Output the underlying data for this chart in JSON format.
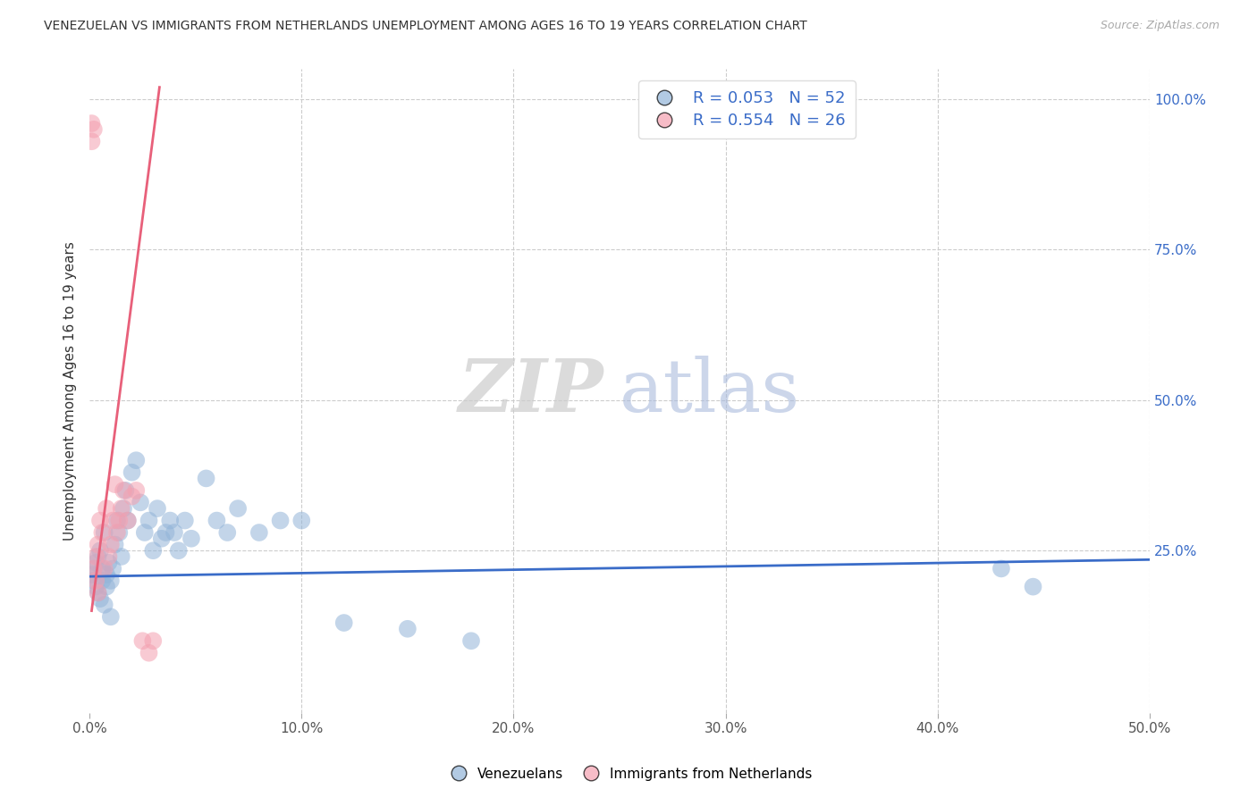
{
  "title": "VENEZUELAN VS IMMIGRANTS FROM NETHERLANDS UNEMPLOYMENT AMONG AGES 16 TO 19 YEARS CORRELATION CHART",
  "source": "Source: ZipAtlas.com",
  "ylabel": "Unemployment Among Ages 16 to 19 years",
  "xlim": [
    0.0,
    0.5
  ],
  "ylim": [
    -0.02,
    1.05
  ],
  "xtick_labels": [
    "0.0%",
    "10.0%",
    "20.0%",
    "30.0%",
    "40.0%",
    "50.0%"
  ],
  "xtick_vals": [
    0.0,
    0.1,
    0.2,
    0.3,
    0.4,
    0.5
  ],
  "ytick_labels": [
    "100.0%",
    "75.0%",
    "50.0%",
    "25.0%"
  ],
  "ytick_vals": [
    1.0,
    0.75,
    0.5,
    0.25
  ],
  "watermark_zip": "ZIP",
  "watermark_atlas": "atlas",
  "legend_blue_r": "0.053",
  "legend_blue_n": "52",
  "legend_pink_r": "0.554",
  "legend_pink_n": "26",
  "legend_blue_label": "Venezuelans",
  "legend_pink_label": "Immigrants from Netherlands",
  "blue_color": "#92B4D8",
  "pink_color": "#F4A0B0",
  "blue_line_color": "#3A6CC8",
  "pink_line_color": "#E8607A",
  "venezuelan_x": [
    0.001,
    0.002,
    0.002,
    0.003,
    0.003,
    0.004,
    0.004,
    0.005,
    0.005,
    0.006,
    0.006,
    0.007,
    0.007,
    0.008,
    0.008,
    0.009,
    0.01,
    0.01,
    0.011,
    0.012,
    0.013,
    0.014,
    0.015,
    0.016,
    0.017,
    0.018,
    0.02,
    0.022,
    0.024,
    0.026,
    0.028,
    0.03,
    0.032,
    0.034,
    0.036,
    0.038,
    0.04,
    0.042,
    0.045,
    0.048,
    0.055,
    0.06,
    0.065,
    0.07,
    0.08,
    0.09,
    0.1,
    0.12,
    0.15,
    0.18,
    0.43,
    0.445
  ],
  "venezuelan_y": [
    0.21,
    0.2,
    0.22,
    0.19,
    0.23,
    0.18,
    0.24,
    0.17,
    0.25,
    0.2,
    0.22,
    0.16,
    0.28,
    0.19,
    0.21,
    0.23,
    0.2,
    0.14,
    0.22,
    0.26,
    0.3,
    0.28,
    0.24,
    0.32,
    0.35,
    0.3,
    0.38,
    0.4,
    0.33,
    0.28,
    0.3,
    0.25,
    0.32,
    0.27,
    0.28,
    0.3,
    0.28,
    0.25,
    0.3,
    0.27,
    0.37,
    0.3,
    0.28,
    0.32,
    0.28,
    0.3,
    0.3,
    0.13,
    0.12,
    0.1,
    0.22,
    0.19
  ],
  "netherlands_x": [
    0.001,
    0.001,
    0.002,
    0.002,
    0.003,
    0.003,
    0.004,
    0.004,
    0.005,
    0.006,
    0.007,
    0.008,
    0.009,
    0.01,
    0.011,
    0.012,
    0.013,
    0.014,
    0.015,
    0.016,
    0.018,
    0.02,
    0.022,
    0.025,
    0.028,
    0.03
  ],
  "netherlands_y": [
    0.96,
    0.93,
    0.95,
    0.22,
    0.24,
    0.2,
    0.26,
    0.18,
    0.3,
    0.28,
    0.22,
    0.32,
    0.24,
    0.26,
    0.3,
    0.36,
    0.28,
    0.3,
    0.32,
    0.35,
    0.3,
    0.34,
    0.35,
    0.1,
    0.08,
    0.1
  ],
  "blue_trend_x": [
    0.0,
    0.5
  ],
  "blue_trend_y": [
    0.207,
    0.235
  ],
  "pink_trend_x": [
    0.001,
    0.033
  ],
  "pink_trend_y": [
    0.15,
    1.02
  ]
}
